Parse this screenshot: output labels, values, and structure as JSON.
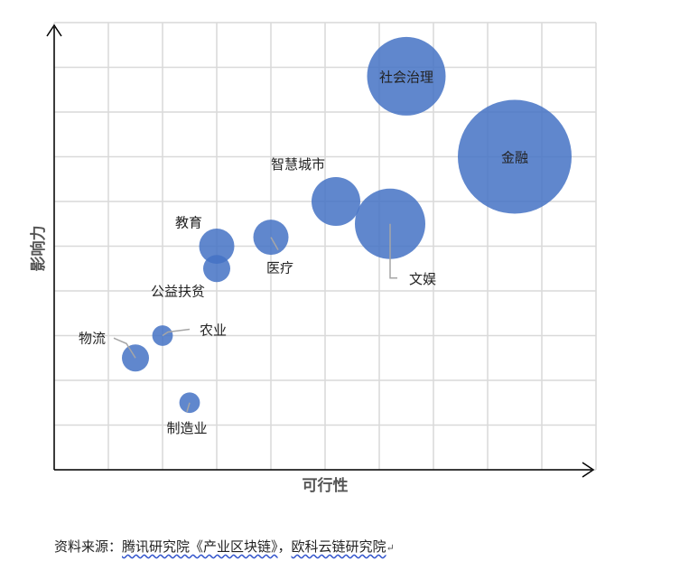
{
  "chart_data": {
    "type": "bubble",
    "xlabel": "可行性",
    "ylabel": "影响力",
    "xlim": [
      0,
      10
    ],
    "ylim": [
      0,
      10
    ],
    "grid": true,
    "colors": {
      "bubble": "#4472C4",
      "grid": "#d9d9d9",
      "axis": "#000000",
      "leader": "#a6a6a6"
    },
    "points": [
      {
        "label": "社会治理",
        "x": 6.5,
        "y": 8.8,
        "size": 1.45
      },
      {
        "label": "金融",
        "x": 8.5,
        "y": 7.0,
        "size": 2.1
      },
      {
        "label": "智慧城市",
        "x": 5.2,
        "y": 6.0,
        "size": 0.9
      },
      {
        "label": "文娱",
        "x": 6.2,
        "y": 5.5,
        "size": 1.3
      },
      {
        "label": "医疗",
        "x": 4.0,
        "y": 5.2,
        "size": 0.65
      },
      {
        "label": "教育",
        "x": 3.0,
        "y": 5.0,
        "size": 0.65
      },
      {
        "label": "公益扶贫",
        "x": 3.0,
        "y": 4.5,
        "size": 0.5
      },
      {
        "label": "农业",
        "x": 2.0,
        "y": 3.0,
        "size": 0.38
      },
      {
        "label": "物流",
        "x": 1.5,
        "y": 2.5,
        "size": 0.5
      },
      {
        "label": "制造业",
        "x": 2.5,
        "y": 1.5,
        "size": 0.38
      }
    ]
  },
  "source_note": {
    "prefix": "资料来源：",
    "part1": "腾讯研究院《产业区块链》",
    "sep": "，",
    "part2": "欧科云链研究院",
    "mark": "↵"
  }
}
